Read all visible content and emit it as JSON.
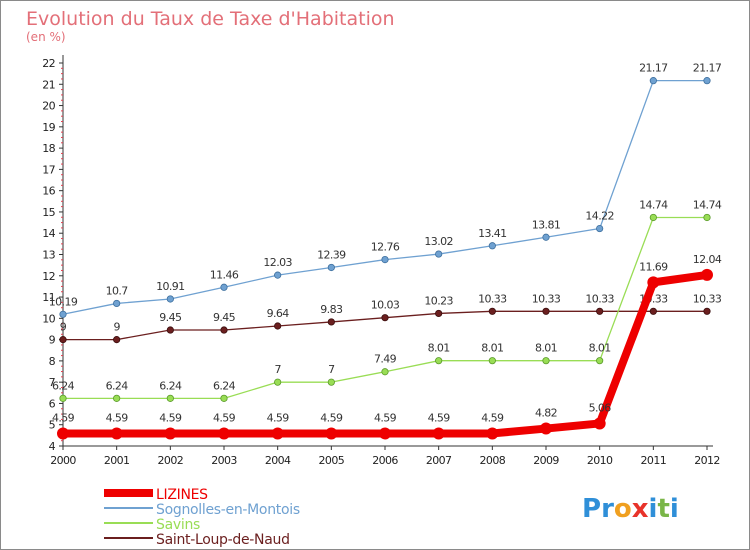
{
  "chart_data": {
    "type": "line",
    "title": "Evolution du Taux de Taxe d'Habitation",
    "subtitle": "(en %)",
    "x": [
      "2000",
      "2001",
      "2002",
      "2003",
      "2004",
      "2005",
      "2006",
      "2007",
      "2008",
      "2009",
      "2010",
      "2011",
      "2012"
    ],
    "ylim": [
      4,
      22
    ],
    "yticks": [
      "4",
      "5",
      "6",
      "7",
      "8",
      "9",
      "10",
      "11",
      "12",
      "13",
      "14",
      "15",
      "16",
      "17",
      "18",
      "19",
      "20",
      "21",
      "22"
    ],
    "grid": false,
    "legend_position": "bottom-left",
    "series": [
      {
        "name": "LIZINES",
        "color": "#ee0000",
        "values": [
          4.59,
          4.59,
          4.59,
          4.59,
          4.59,
          4.59,
          4.59,
          4.59,
          4.59,
          4.82,
          5.06,
          11.69,
          12.04
        ],
        "labels": [
          "4.59",
          "4.59",
          "4.59",
          "4.59",
          "4.59",
          "4.59",
          "4.59",
          "4.59",
          "4.59",
          "4.82",
          "5.06",
          "11.69",
          "12.04"
        ]
      },
      {
        "name": "Sognolles-en-Montois",
        "color": "#6fa1d1",
        "values": [
          10.19,
          10.7,
          10.91,
          11.46,
          12.03,
          12.39,
          12.76,
          13.02,
          13.41,
          13.81,
          14.22,
          21.17,
          21.17
        ],
        "labels": [
          "10.19",
          "10.7",
          "10.91",
          "11.46",
          "12.03",
          "12.39",
          "12.76",
          "13.02",
          "13.41",
          "13.81",
          "14.22",
          "21.17",
          "21.17"
        ]
      },
      {
        "name": "Savins",
        "color": "#99dd55",
        "values": [
          6.24,
          6.24,
          6.24,
          6.24,
          7,
          7,
          7.49,
          8.01,
          8.01,
          8.01,
          8.01,
          14.74,
          14.74
        ],
        "labels": [
          "6.24",
          "6.24",
          "6.24",
          "6.24",
          "7",
          "7",
          "7.49",
          "8.01",
          "8.01",
          "8.01",
          "8.01",
          "14.74",
          "14.74"
        ]
      },
      {
        "name": "Saint-Loup-de-Naud",
        "color": "#6b1f1f",
        "values": [
          9,
          9,
          9.45,
          9.45,
          9.64,
          9.83,
          10.03,
          10.23,
          10.33,
          10.33,
          10.33,
          10.33,
          10.33
        ],
        "labels": [
          "9",
          "9",
          "9.45",
          "9.45",
          "9.64",
          "9.83",
          "10.03",
          "10.23",
          "10.33",
          "10.33",
          "10.33",
          "10.33",
          "10.33"
        ]
      }
    ]
  },
  "brand": {
    "letters": [
      {
        "ch": "P",
        "color": "#2f8fd8"
      },
      {
        "ch": "r",
        "color": "#2f8fd8"
      },
      {
        "ch": "o",
        "color": "#f0a020"
      },
      {
        "ch": "x",
        "color": "#e8332a"
      },
      {
        "ch": "i",
        "color": "#2f8fd8"
      },
      {
        "ch": "t",
        "color": "#7ab648"
      },
      {
        "ch": "i",
        "color": "#2f8fd8"
      }
    ]
  }
}
